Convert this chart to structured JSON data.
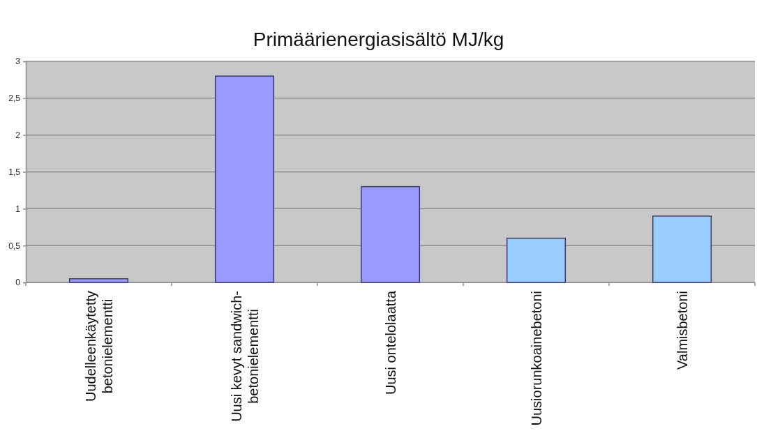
{
  "chart_data": {
    "type": "bar",
    "title": "Primäärienergiasisältö MJ/kg",
    "categories": [
      "Uudelleenkäytetty betonielementti",
      "Uusi kevyt sandwich-betonielementti",
      "Uusi ontelolaatta",
      "Uusiorunkoainebetoni",
      "Valmisbetoni"
    ],
    "values": [
      0.05,
      2.8,
      1.3,
      0.6,
      0.9
    ],
    "colors": [
      "#9999ff",
      "#9999ff",
      "#9999ff",
      "#99ccff",
      "#99ccff"
    ],
    "ylim": [
      0,
      3
    ],
    "yticks": [
      0,
      {
        "value": 0.5,
        "label": "0,5"
      },
      1,
      {
        "value": 1.5,
        "label": "1,5"
      },
      2,
      {
        "value": 2.5,
        "label": "2,5"
      },
      3
    ],
    "grid": "y"
  }
}
